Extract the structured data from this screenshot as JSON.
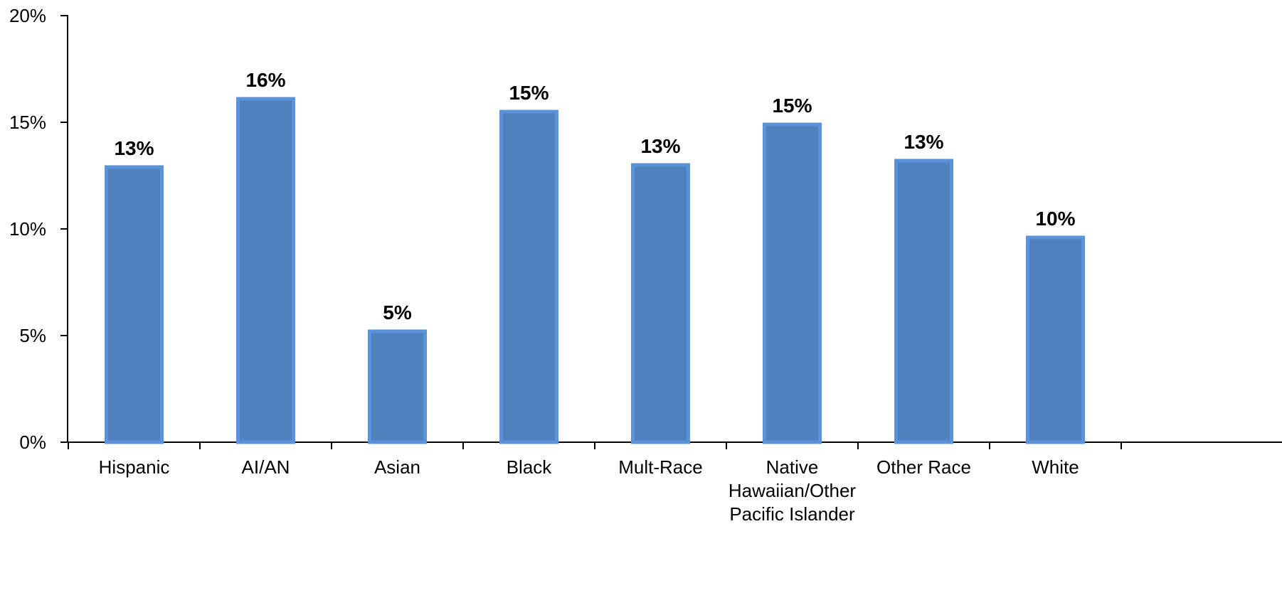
{
  "chart_data": {
    "type": "bar",
    "categories": [
      "Hispanic",
      "AI/AN",
      "Asian",
      "Black",
      "Mult-Race",
      "Native Hawaiian/Other Pacific Islander",
      "Other Race",
      "White"
    ],
    "category_label_lines": [
      [
        "Hispanic"
      ],
      [
        "AI/AN"
      ],
      [
        "Asian"
      ],
      [
        "Black"
      ],
      [
        "Mult-Race"
      ],
      [
        "Native",
        "Hawaiian/Other",
        "Pacific Islander"
      ],
      [
        "Other Race"
      ],
      [
        "White"
      ]
    ],
    "values": [
      12.9,
      16.1,
      5.2,
      15.5,
      13.0,
      14.9,
      13.2,
      9.6
    ],
    "data_labels": [
      "13%",
      "16%",
      "5%",
      "15%",
      "13%",
      "15%",
      "13%",
      "10%"
    ],
    "ylim": [
      0,
      20
    ],
    "y_ticks": [
      0,
      5,
      10,
      15,
      20
    ],
    "y_tick_labels": [
      "0%",
      "5%",
      "10%",
      "15%",
      "20%"
    ],
    "title": "",
    "xlabel": "",
    "ylabel": "",
    "grid": false,
    "colors": {
      "bar_fill": "#4F81BD",
      "bar_stroke": "#5B93DA",
      "axis": "#000000",
      "text": "#000000"
    }
  }
}
